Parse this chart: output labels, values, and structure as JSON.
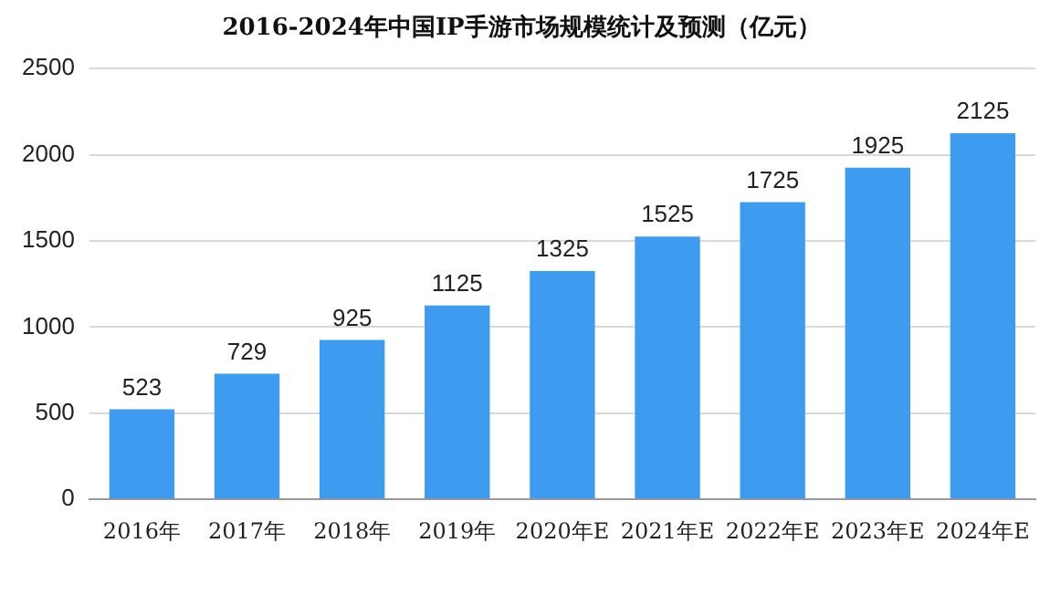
{
  "chart_data": {
    "type": "bar",
    "title": "2016-2024年中国IP手游市场规模统计及预测（亿元）",
    "categories": [
      "2016年",
      "2017年",
      "2018年",
      "2019年",
      "2020年E",
      "2021年E",
      "2022年E",
      "2023年E",
      "2024年E"
    ],
    "values": [
      523,
      729,
      925,
      1125,
      1325,
      1525,
      1725,
      1925,
      2125
    ],
    "color": "#3d9cf0",
    "ylim": [
      0,
      2500
    ],
    "yticks": [
      0,
      500,
      1000,
      1500,
      2000,
      2500
    ],
    "grid": "y",
    "data_labels": true
  }
}
